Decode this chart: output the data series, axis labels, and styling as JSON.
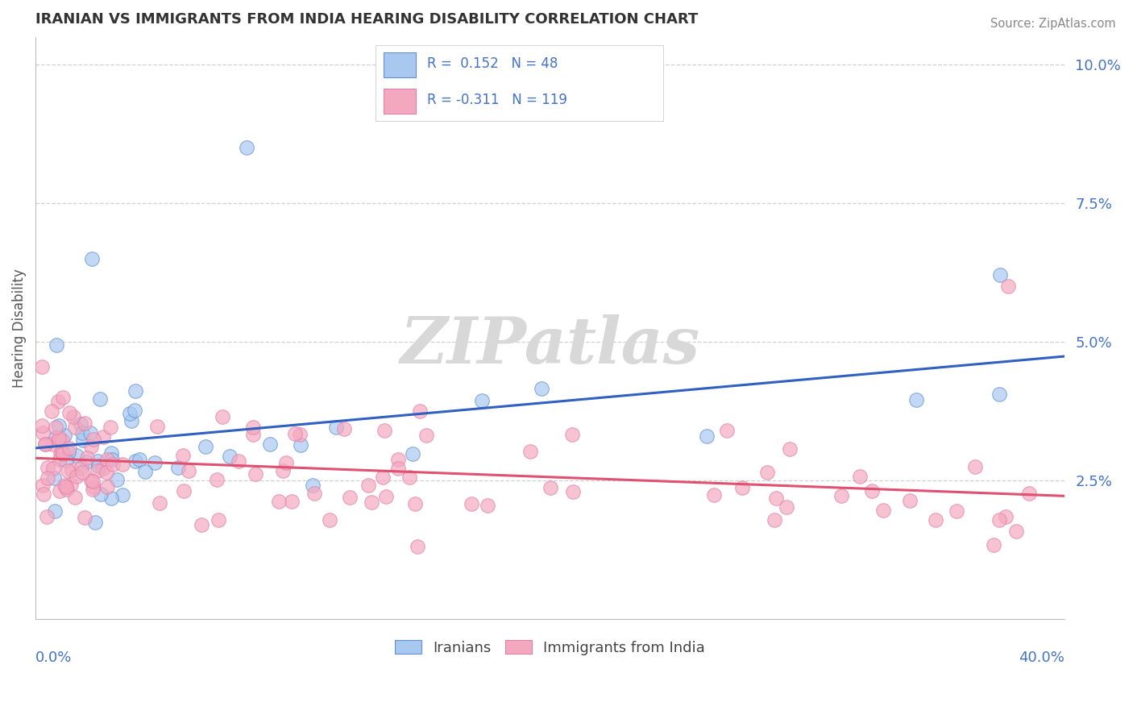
{
  "title": "IRANIAN VS IMMIGRANTS FROM INDIA HEARING DISABILITY CORRELATION CHART",
  "source": "Source: ZipAtlas.com",
  "ylabel": "Hearing Disability",
  "xlim": [
    0.0,
    0.4
  ],
  "ylim": [
    0.0,
    0.105
  ],
  "ytick_vals": [
    0.025,
    0.05,
    0.075,
    0.1
  ],
  "ytick_labels": [
    "2.5%",
    "5.0%",
    "7.5%",
    "10.0%"
  ],
  "legend_label1": "Iranians",
  "legend_label2": "Immigrants from India",
  "color_iranian": "#a8c8f0",
  "color_india": "#f4a8c0",
  "edge_color_iranian": "#6090d0",
  "edge_color_india": "#e080a8",
  "trendline_color_iranian": "#3060c0",
  "trendline_color_india": "#e05070",
  "background_color": "#ffffff",
  "legend_text_color": "#4472c4",
  "tick_label_color": "#4472c4",
  "title_color": "#333333",
  "source_color": "#888888",
  "ylabel_color": "#555555",
  "grid_color": "#d0d0d0",
  "watermark_color": "#d8d8d8"
}
